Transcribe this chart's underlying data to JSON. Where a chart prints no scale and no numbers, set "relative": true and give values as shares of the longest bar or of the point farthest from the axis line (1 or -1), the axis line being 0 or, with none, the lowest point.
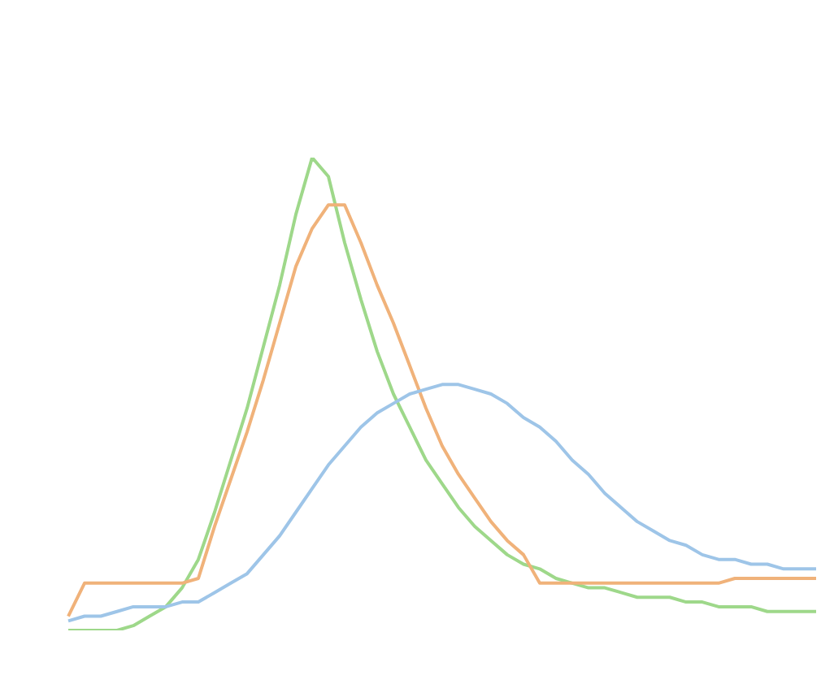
{
  "chart_data": {
    "type": "line",
    "relative": true,
    "marker": "none",
    "line_style": "solid",
    "legend": false,
    "categories": [
      null,
      null,
      null,
      null,
      null,
      null,
      null,
      null,
      null,
      null,
      null,
      null,
      null,
      null,
      null,
      null,
      null,
      null,
      null,
      null,
      null,
      null,
      null,
      null,
      null,
      null,
      null,
      null,
      null,
      null,
      null,
      null,
      null,
      null,
      null,
      null,
      null,
      null,
      null,
      null,
      null,
      null,
      null,
      null,
      null,
      null,
      null
    ],
    "series": [
      {
        "color": "#9ec5e8",
        "values": [
          0.02,
          0.03,
          0.03,
          0.04,
          0.05,
          0.05,
          0.05,
          0.06,
          0.06,
          0.08,
          0.1,
          0.12,
          0.16,
          0.2,
          0.25,
          0.3,
          0.35,
          0.39,
          0.43,
          0.46,
          0.48,
          0.5,
          0.51,
          0.52,
          0.52,
          0.51,
          0.5,
          0.48,
          0.45,
          0.43,
          0.4,
          0.36,
          0.33,
          0.29,
          0.26,
          0.23,
          0.21,
          0.19,
          0.18,
          0.16,
          0.15,
          0.15,
          0.14,
          0.14,
          0.13,
          0.13,
          0.13
        ]
      },
      {
        "color": "#f0b27a",
        "values": [
          0.03,
          0.1,
          0.1,
          0.1,
          0.1,
          0.1,
          0.1,
          0.1,
          0.11,
          0.22,
          0.32,
          0.42,
          0.53,
          0.65,
          0.77,
          0.85,
          0.9,
          0.9,
          0.82,
          0.73,
          0.65,
          0.56,
          0.47,
          0.39,
          0.33,
          0.28,
          0.23,
          0.19,
          0.16,
          0.1,
          0.1,
          0.1,
          0.1,
          0.1,
          0.1,
          0.1,
          0.1,
          0.1,
          0.1,
          0.1,
          0.1,
          0.11,
          0.11,
          0.11,
          0.11,
          0.11,
          0.11
        ]
      },
      {
        "color": "#9ed88a",
        "values": [
          0,
          0,
          0,
          0,
          0.01,
          0.03,
          0.05,
          0.09,
          0.15,
          0.25,
          0.36,
          0.47,
          0.6,
          0.73,
          0.88,
          1,
          0.96,
          0.82,
          0.7,
          0.59,
          0.5,
          0.43,
          0.36,
          0.31,
          0.26,
          0.22,
          0.19,
          0.16,
          0.14,
          0.13,
          0.11,
          0.1,
          0.09,
          0.09,
          0.08,
          0.07,
          0.07,
          0.07,
          0.06,
          0.06,
          0.05,
          0.05,
          0.05,
          0.04,
          0.04,
          0.04,
          0.04
        ]
      }
    ]
  }
}
